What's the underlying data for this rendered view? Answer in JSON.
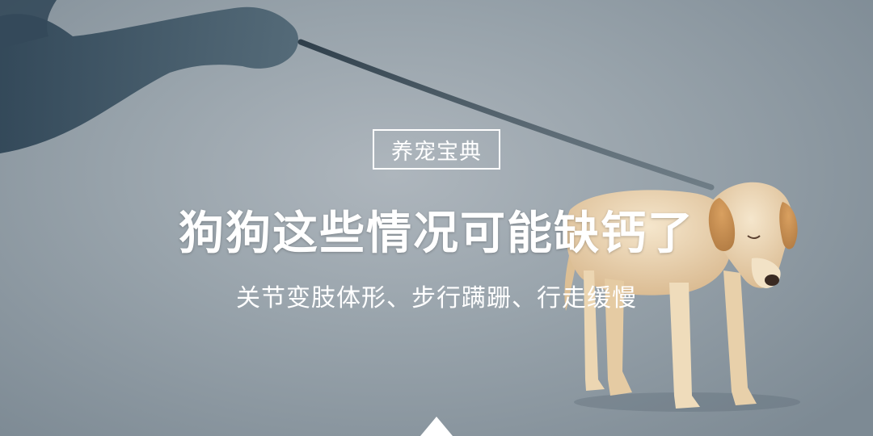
{
  "banner": {
    "tag": "养宠宝典",
    "headline": "狗狗这些情况可能缺钙了",
    "subtitle": "关节变肢体形、步行蹒跚、行走缓慢"
  },
  "colors": {
    "background": "#98a3ab",
    "text": "#ffffff",
    "silhouette": "#3f5566",
    "dog_fur": "#e8cfa8"
  }
}
